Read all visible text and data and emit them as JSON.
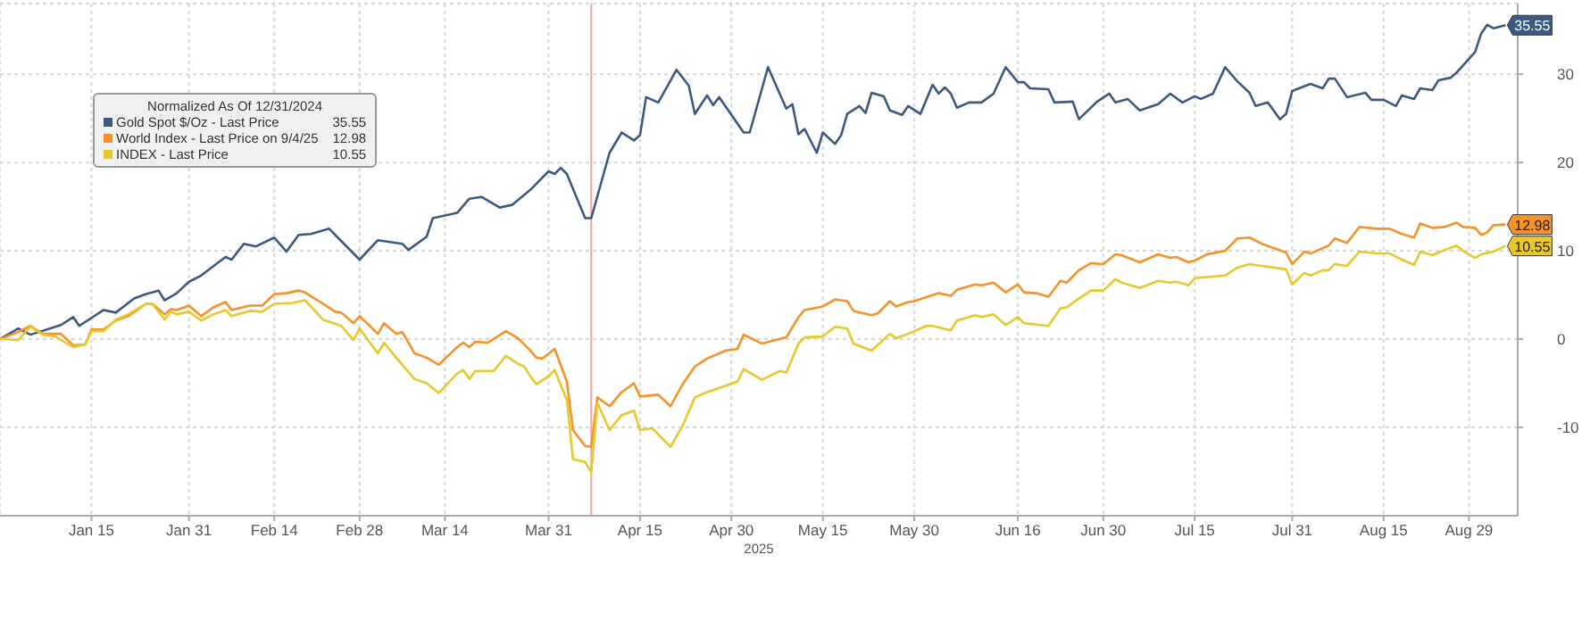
{
  "chart_data": {
    "type": "line",
    "xlabel": "2025",
    "legend_title": "Normalized As Of 12/31/2024",
    "legend": "top left",
    "grid": true,
    "marker": "none",
    "line_style": "solid",
    "xlim": [
      "2024-12-31",
      "2025-09-06"
    ],
    "xticks": [
      {
        "value": "2025-01-15",
        "label": "Jan 15"
      },
      {
        "value": "2025-01-31",
        "label": "Jan 31"
      },
      {
        "value": "2025-02-14",
        "label": "Feb 14"
      },
      {
        "value": "2025-02-28",
        "label": "Feb 28"
      },
      {
        "value": "2025-03-14",
        "label": "Mar 14"
      },
      {
        "value": "2025-03-31",
        "label": "Mar 31"
      },
      {
        "value": "2025-04-15",
        "label": "Apr 15"
      },
      {
        "value": "2025-04-30",
        "label": "Apr 30"
      },
      {
        "value": "2025-05-15",
        "label": "May 15"
      },
      {
        "value": "2025-05-30",
        "label": "May 30"
      },
      {
        "value": "2025-06-16",
        "label": "Jun 16"
      },
      {
        "value": "2025-06-30",
        "label": "Jun 30"
      },
      {
        "value": "2025-07-15",
        "label": "Jul 15"
      },
      {
        "value": "2025-07-31",
        "label": "Jul 31"
      },
      {
        "value": "2025-08-15",
        "label": "Aug 15"
      },
      {
        "value": "2025-08-29",
        "label": "Aug 29"
      }
    ],
    "ylim": [
      -20,
      38
    ],
    "yticks": [
      -10,
      0,
      10,
      20,
      30
    ],
    "ref_lines": [
      {
        "axis": "x",
        "value": "2025-04-07",
        "color": "#f4a3a3"
      }
    ],
    "annotations": [
      {
        "text": "35.55",
        "x": "2025-09-04",
        "y": 35.55
      },
      {
        "text": "12.98",
        "x": "2025-09-04",
        "y": 12.98
      },
      {
        "text": "10.55",
        "x": "2025-09-04",
        "y": 10.55
      }
    ],
    "series": [
      {
        "name": "Gold Spot $/Oz - Last Price",
        "color": "#3b5a80",
        "x": [
          "2024-12-31",
          "2025-01-03",
          "2025-01-05",
          "2025-01-10",
          "2025-01-12",
          "2025-01-13",
          "2025-01-17",
          "2025-01-19",
          "2025-01-22",
          "2025-01-24",
          "2025-01-26",
          "2025-01-27",
          "2025-01-29",
          "2025-01-31",
          "2025-02-02",
          "2025-02-06",
          "2025-02-07",
          "2025-02-09",
          "2025-02-11",
          "2025-02-14",
          "2025-02-16",
          "2025-02-18",
          "2025-02-20",
          "2025-02-23",
          "2025-02-25",
          "2025-02-28",
          "2025-03-03",
          "2025-03-07",
          "2025-03-08",
          "2025-03-11",
          "2025-03-12",
          "2025-03-16",
          "2025-03-18",
          "2025-03-20",
          "2025-03-23",
          "2025-03-25",
          "2025-03-28",
          "2025-03-31",
          "2025-04-01",
          "2025-04-02",
          "2025-04-03",
          "2025-04-06",
          "2025-04-07",
          "2025-04-10",
          "2025-04-12",
          "2025-04-14",
          "2025-04-15",
          "2025-04-16",
          "2025-04-18",
          "2025-04-21",
          "2025-04-23",
          "2025-04-24",
          "2025-04-26",
          "2025-04-27",
          "2025-04-28",
          "2025-04-30",
          "2025-05-02",
          "2025-05-03",
          "2025-05-06",
          "2025-05-09",
          "2025-05-10",
          "2025-05-11",
          "2025-05-12",
          "2025-05-14",
          "2025-05-15",
          "2025-05-17",
          "2025-05-18",
          "2025-05-19",
          "2025-05-21",
          "2025-05-22",
          "2025-05-23",
          "2025-05-25",
          "2025-05-26",
          "2025-05-28",
          "2025-05-29",
          "2025-05-31",
          "2025-06-02",
          "2025-06-03",
          "2025-06-04",
          "2025-06-05",
          "2025-06-06",
          "2025-06-08",
          "2025-06-10",
          "2025-06-12",
          "2025-06-14",
          "2025-06-16",
          "2025-06-17",
          "2025-06-18",
          "2025-06-21",
          "2025-06-22",
          "2025-06-25",
          "2025-06-26",
          "2025-06-29",
          "2025-07-01",
          "2025-07-02",
          "2025-07-04",
          "2025-07-06",
          "2025-07-09",
          "2025-07-11",
          "2025-07-13",
          "2025-07-15",
          "2025-07-16",
          "2025-07-18",
          "2025-07-20",
          "2025-07-22",
          "2025-07-24",
          "2025-07-25",
          "2025-07-27",
          "2025-07-29",
          "2025-07-30",
          "2025-07-31",
          "2025-08-03",
          "2025-08-05",
          "2025-08-06",
          "2025-08-07",
          "2025-08-09",
          "2025-08-12",
          "2025-08-13",
          "2025-08-15",
          "2025-08-17",
          "2025-08-18",
          "2025-08-20",
          "2025-08-21",
          "2025-08-23",
          "2025-08-24",
          "2025-08-26",
          "2025-08-27",
          "2025-08-30",
          "2025-08-31",
          "2025-09-01",
          "2025-09-02",
          "2025-09-04"
        ],
        "values": [
          0,
          1.2,
          0.5,
          1.6,
          2.5,
          1.5,
          3.3,
          3.0,
          4.6,
          5.1,
          5.5,
          4.4,
          5.2,
          6.5,
          7.2,
          9.3,
          9.0,
          10.8,
          10.5,
          11.5,
          9.9,
          11.8,
          11.9,
          12.5,
          11.1,
          9.0,
          11.2,
          10.8,
          10.1,
          11.6,
          13.7,
          14.3,
          15.9,
          16.1,
          14.9,
          15.2,
          16.9,
          19.0,
          18.7,
          19.4,
          18.7,
          13.7,
          13.7,
          21.1,
          23.4,
          22.5,
          23.1,
          27.4,
          26.8,
          30.5,
          28.7,
          25.5,
          27.6,
          26.5,
          27.4,
          25.4,
          23.4,
          23.4,
          30.8,
          26.1,
          26.6,
          23.2,
          23.8,
          21.1,
          23.4,
          22.1,
          23.1,
          25.5,
          26.4,
          25.6,
          27.9,
          27.5,
          25.9,
          25.4,
          26.4,
          25.5,
          28.8,
          27.8,
          28.5,
          27.8,
          26.2,
          26.8,
          26.8,
          27.8,
          30.8,
          29.1,
          29.1,
          28.4,
          28.3,
          26.8,
          26.9,
          24.9,
          26.9,
          27.8,
          26.8,
          27.2,
          25.9,
          26.6,
          27.8,
          26.8,
          27.5,
          27.2,
          27.8,
          30.8,
          29.2,
          27.9,
          26.4,
          26.8,
          24.9,
          25.5,
          28.1,
          28.9,
          28.4,
          29.5,
          29.5,
          27.4,
          27.9,
          27.1,
          27.1,
          26.4,
          27.6,
          27.2,
          28.4,
          28.2,
          29.3,
          29.6,
          30.2,
          32.5,
          34.6,
          35.6,
          35.2,
          35.55
        ]
      },
      {
        "name": "World Index - Last Price on 9/4/25",
        "color": "#f5932a",
        "x": [
          "2024-12-31",
          "2025-01-03",
          "2025-01-05",
          "2025-01-07",
          "2025-01-10",
          "2025-01-12",
          "2025-01-14",
          "2025-01-15",
          "2025-01-17",
          "2025-01-19",
          "2025-01-21",
          "2025-01-24",
          "2025-01-25",
          "2025-01-27",
          "2025-01-28",
          "2025-01-29",
          "2025-01-31",
          "2025-02-02",
          "2025-02-04",
          "2025-02-06",
          "2025-02-07",
          "2025-02-10",
          "2025-02-12",
          "2025-02-14",
          "2025-02-16",
          "2025-02-18",
          "2025-02-19",
          "2025-02-22",
          "2025-02-24",
          "2025-02-25",
          "2025-02-27",
          "2025-02-28",
          "2025-03-03",
          "2025-03-04",
          "2025-03-06",
          "2025-03-07",
          "2025-03-09",
          "2025-03-11",
          "2025-03-13",
          "2025-03-16",
          "2025-03-17",
          "2025-03-18",
          "2025-03-19",
          "2025-03-21",
          "2025-03-24",
          "2025-03-26",
          "2025-03-28",
          "2025-03-29",
          "2025-03-30",
          "2025-04-01",
          "2025-04-03",
          "2025-04-04",
          "2025-04-06",
          "2025-04-07",
          "2025-04-08",
          "2025-04-10",
          "2025-04-12",
          "2025-04-14",
          "2025-04-15",
          "2025-04-18",
          "2025-04-20",
          "2025-04-22",
          "2025-04-24",
          "2025-04-26",
          "2025-04-29",
          "2025-05-01",
          "2025-05-02",
          "2025-05-05",
          "2025-05-09",
          "2025-05-11",
          "2025-05-12",
          "2025-05-15",
          "2025-05-17",
          "2025-05-19",
          "2025-05-20",
          "2025-05-23",
          "2025-05-24",
          "2025-05-26",
          "2025-05-27",
          "2025-05-29",
          "2025-05-30",
          "2025-06-03",
          "2025-06-05",
          "2025-06-06",
          "2025-06-09",
          "2025-06-10",
          "2025-06-12",
          "2025-06-14",
          "2025-06-16",
          "2025-06-17",
          "2025-06-19",
          "2025-06-21",
          "2025-06-23",
          "2025-06-24",
          "2025-06-26",
          "2025-06-28",
          "2025-06-30",
          "2025-07-02",
          "2025-07-03",
          "2025-07-06",
          "2025-07-09",
          "2025-07-11",
          "2025-07-12",
          "2025-07-14",
          "2025-07-15",
          "2025-07-17",
          "2025-07-20",
          "2025-07-22",
          "2025-07-24",
          "2025-07-26",
          "2025-07-30",
          "2025-07-31",
          "2025-08-02",
          "2025-08-03",
          "2025-08-06",
          "2025-08-07",
          "2025-08-09",
          "2025-08-11",
          "2025-08-14",
          "2025-08-16",
          "2025-08-18",
          "2025-08-20",
          "2025-08-21",
          "2025-08-23",
          "2025-08-25",
          "2025-08-27",
          "2025-08-28",
          "2025-08-30",
          "2025-08-31",
          "2025-09-01",
          "2025-09-02",
          "2025-09-04"
        ],
        "values": [
          0,
          0.8,
          1.5,
          0.6,
          0.6,
          -0.7,
          -0.6,
          1.1,
          1.1,
          2.1,
          2.6,
          4.0,
          4.0,
          2.8,
          3.4,
          3.3,
          3.8,
          2.6,
          3.6,
          4.2,
          3.3,
          3.8,
          3.8,
          5.1,
          5.2,
          5.5,
          5.3,
          4.0,
          3.1,
          3.0,
          1.8,
          2.6,
          0.6,
          1.8,
          0.6,
          0.8,
          -1.6,
          -2.1,
          -2.9,
          -0.9,
          -0.4,
          -0.9,
          -0.3,
          -0.4,
          0.9,
          0.1,
          -1.3,
          -2.1,
          -2.2,
          -1.1,
          -4.8,
          -10.3,
          -12.1,
          -12.2,
          -6.6,
          -7.6,
          -6.0,
          -5.0,
          -6.5,
          -6.3,
          -7.6,
          -5.1,
          -3.1,
          -2.2,
          -1.3,
          -1.1,
          0.5,
          -0.5,
          0.2,
          2.5,
          3.3,
          3.7,
          4.5,
          4.3,
          3.2,
          2.7,
          2.9,
          4.3,
          3.7,
          4.2,
          4.3,
          5.2,
          4.9,
          5.6,
          6.2,
          6.1,
          6.4,
          5.3,
          6.2,
          5.3,
          5.2,
          4.8,
          6.6,
          6.4,
          7.8,
          8.6,
          8.5,
          9.6,
          9.5,
          8.7,
          9.6,
          9.2,
          9.3,
          8.7,
          8.9,
          9.6,
          10.0,
          11.4,
          11.5,
          10.8,
          9.8,
          8.5,
          9.9,
          9.7,
          10.6,
          11.4,
          10.9,
          12.7,
          12.5,
          12.5,
          11.9,
          11.5,
          13.1,
          12.6,
          12.7,
          13.2,
          12.7,
          12.6,
          11.8,
          12.1,
          12.9,
          12.98
        ]
      },
      {
        "name": "INDEX - Last Price",
        "color": "#e8c82a",
        "x": [
          "2024-12-31",
          "2025-01-03",
          "2025-01-05",
          "2025-01-07",
          "2025-01-09",
          "2025-01-12",
          "2025-01-14",
          "2025-01-15",
          "2025-01-17",
          "2025-01-19",
          "2025-01-21",
          "2025-01-24",
          "2025-01-25",
          "2025-01-27",
          "2025-01-28",
          "2025-01-29",
          "2025-01-31",
          "2025-02-02",
          "2025-02-04",
          "2025-02-06",
          "2025-02-07",
          "2025-02-10",
          "2025-02-12",
          "2025-02-14",
          "2025-02-17",
          "2025-02-19",
          "2025-02-20",
          "2025-02-22",
          "2025-02-25",
          "2025-02-27",
          "2025-02-28",
          "2025-03-03",
          "2025-03-04",
          "2025-03-06",
          "2025-03-09",
          "2025-03-11",
          "2025-03-13",
          "2025-03-16",
          "2025-03-17",
          "2025-03-18",
          "2025-03-19",
          "2025-03-22",
          "2025-03-24",
          "2025-03-26",
          "2025-03-27",
          "2025-03-28",
          "2025-03-29",
          "2025-03-31",
          "2025-04-01",
          "2025-04-03",
          "2025-04-04",
          "2025-04-06",
          "2025-04-07",
          "2025-04-08",
          "2025-04-10",
          "2025-04-12",
          "2025-04-14",
          "2025-04-15",
          "2025-04-17",
          "2025-04-20",
          "2025-04-22",
          "2025-04-24",
          "2025-04-26",
          "2025-04-29",
          "2025-05-01",
          "2025-05-02",
          "2025-05-05",
          "2025-05-08",
          "2025-05-09",
          "2025-05-11",
          "2025-05-12",
          "2025-05-15",
          "2025-05-17",
          "2025-05-19",
          "2025-05-20",
          "2025-05-23",
          "2025-05-26",
          "2025-05-27",
          "2025-05-29",
          "2025-06-01",
          "2025-06-02",
          "2025-06-05",
          "2025-06-06",
          "2025-06-09",
          "2025-06-10",
          "2025-06-12",
          "2025-06-14",
          "2025-06-16",
          "2025-06-17",
          "2025-06-21",
          "2025-06-23",
          "2025-06-24",
          "2025-06-26",
          "2025-06-28",
          "2025-06-30",
          "2025-07-02",
          "2025-07-03",
          "2025-07-06",
          "2025-07-09",
          "2025-07-11",
          "2025-07-12",
          "2025-07-14",
          "2025-07-15",
          "2025-07-20",
          "2025-07-22",
          "2025-07-24",
          "2025-07-26",
          "2025-07-30",
          "2025-07-31",
          "2025-08-02",
          "2025-08-03",
          "2025-08-05",
          "2025-08-06",
          "2025-08-07",
          "2025-08-09",
          "2025-08-11",
          "2025-08-14",
          "2025-08-16",
          "2025-08-18",
          "2025-08-20",
          "2025-08-21",
          "2025-08-23",
          "2025-08-25",
          "2025-08-27",
          "2025-08-28",
          "2025-08-30",
          "2025-08-31",
          "2025-09-02",
          "2025-09-04"
        ],
        "values": [
          0,
          -0.1,
          1.4,
          0.5,
          0.3,
          -0.9,
          -0.6,
          0.9,
          0.9,
          2.2,
          2.8,
          4.0,
          4.0,
          2.2,
          3.1,
          2.8,
          3.1,
          2.1,
          2.8,
          3.3,
          2.6,
          3.2,
          3.1,
          4.0,
          4.1,
          4.4,
          3.7,
          2.2,
          1.5,
          -0.1,
          1.2,
          -1.6,
          -0.4,
          -2.1,
          -4.5,
          -5.0,
          -6.1,
          -3.9,
          -3.5,
          -4.5,
          -3.6,
          -3.6,
          -1.9,
          -2.8,
          -3.1,
          -4.2,
          -5.1,
          -4.2,
          -3.5,
          -6.9,
          -13.6,
          -13.9,
          -15.1,
          -7.2,
          -10.3,
          -8.6,
          -8.1,
          -10.3,
          -10.1,
          -12.2,
          -9.8,
          -6.6,
          -6.0,
          -5.3,
          -4.8,
          -3.4,
          -4.6,
          -3.6,
          -3.8,
          -0.5,
          0.2,
          0.3,
          1.4,
          1.2,
          -0.5,
          -1.3,
          0.6,
          0.1,
          0.6,
          1.5,
          1.5,
          1.0,
          2.1,
          2.7,
          2.5,
          2.8,
          1.6,
          2.5,
          1.8,
          1.5,
          3.5,
          3.6,
          4.6,
          5.5,
          5.5,
          6.8,
          6.4,
          5.8,
          6.6,
          6.4,
          6.5,
          6.1,
          6.9,
          7.2,
          8.1,
          8.5,
          8.3,
          7.9,
          6.2,
          7.5,
          7.2,
          7.8,
          7.8,
          8.5,
          8.3,
          9.9,
          9.7,
          9.7,
          9.0,
          8.4,
          9.9,
          9.5,
          10.1,
          10.6,
          10.0,
          9.2,
          9.6,
          9.9,
          10.55
        ]
      }
    ]
  }
}
